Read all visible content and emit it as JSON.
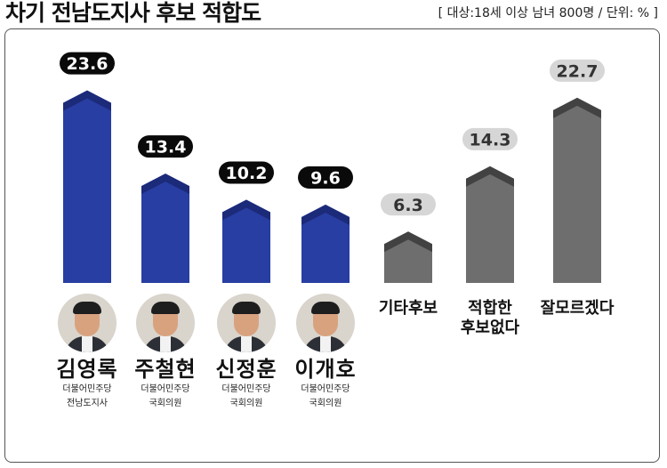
{
  "header": {
    "title": "차기 전남도지사 후보 적합도",
    "subtitle": "[ 대상:18세 이상 남녀 800명  / 단위: % ]"
  },
  "colors": {
    "candidate_bar": "#283ea2",
    "candidate_bar_top": "#1c2a7a",
    "other_bar": "#6e6e6e",
    "other_bar_top": "#424242",
    "candidate_label_bg": "#0a0a0a",
    "other_label_bg": "#d6d6d6"
  },
  "chart_data": {
    "type": "bar",
    "title": "차기 전남도지사 후보 적합도",
    "unit": "%",
    "categories": [
      "김영록",
      "주철현",
      "신정훈",
      "이개호",
      "기타후보",
      "적합한 후보없다",
      "잘모르겠다"
    ],
    "values": [
      23.6,
      13.4,
      10.2,
      9.6,
      6.3,
      14.3,
      22.7
    ],
    "value_labels": [
      "23.6",
      "13.4",
      "10.2",
      "9.6",
      "6.3",
      "14.3",
      "22.7"
    ],
    "group": [
      "candidate",
      "candidate",
      "candidate",
      "candidate",
      "other",
      "other",
      "other"
    ],
    "ylim": [
      0,
      24
    ]
  },
  "candidates": [
    {
      "name": "김영록",
      "party": "더불어민주당",
      "position": "전남도지사",
      "photo_icon": "portrait-photo"
    },
    {
      "name": "주철현",
      "party": "더불어민주당",
      "position": "국회의원",
      "photo_icon": "portrait-photo"
    },
    {
      "name": "신정훈",
      "party": "더불어민주당",
      "position": "국회의원",
      "photo_icon": "portrait-photo"
    },
    {
      "name": "이개호",
      "party": "더불어민주당",
      "position": "국회의원",
      "photo_icon": "portrait-photo"
    }
  ],
  "others": [
    {
      "line1": "기타후보",
      "line2": ""
    },
    {
      "line1": "적합한",
      "line2": "후보없다"
    },
    {
      "line1": "잘모르겠다",
      "line2": ""
    }
  ]
}
